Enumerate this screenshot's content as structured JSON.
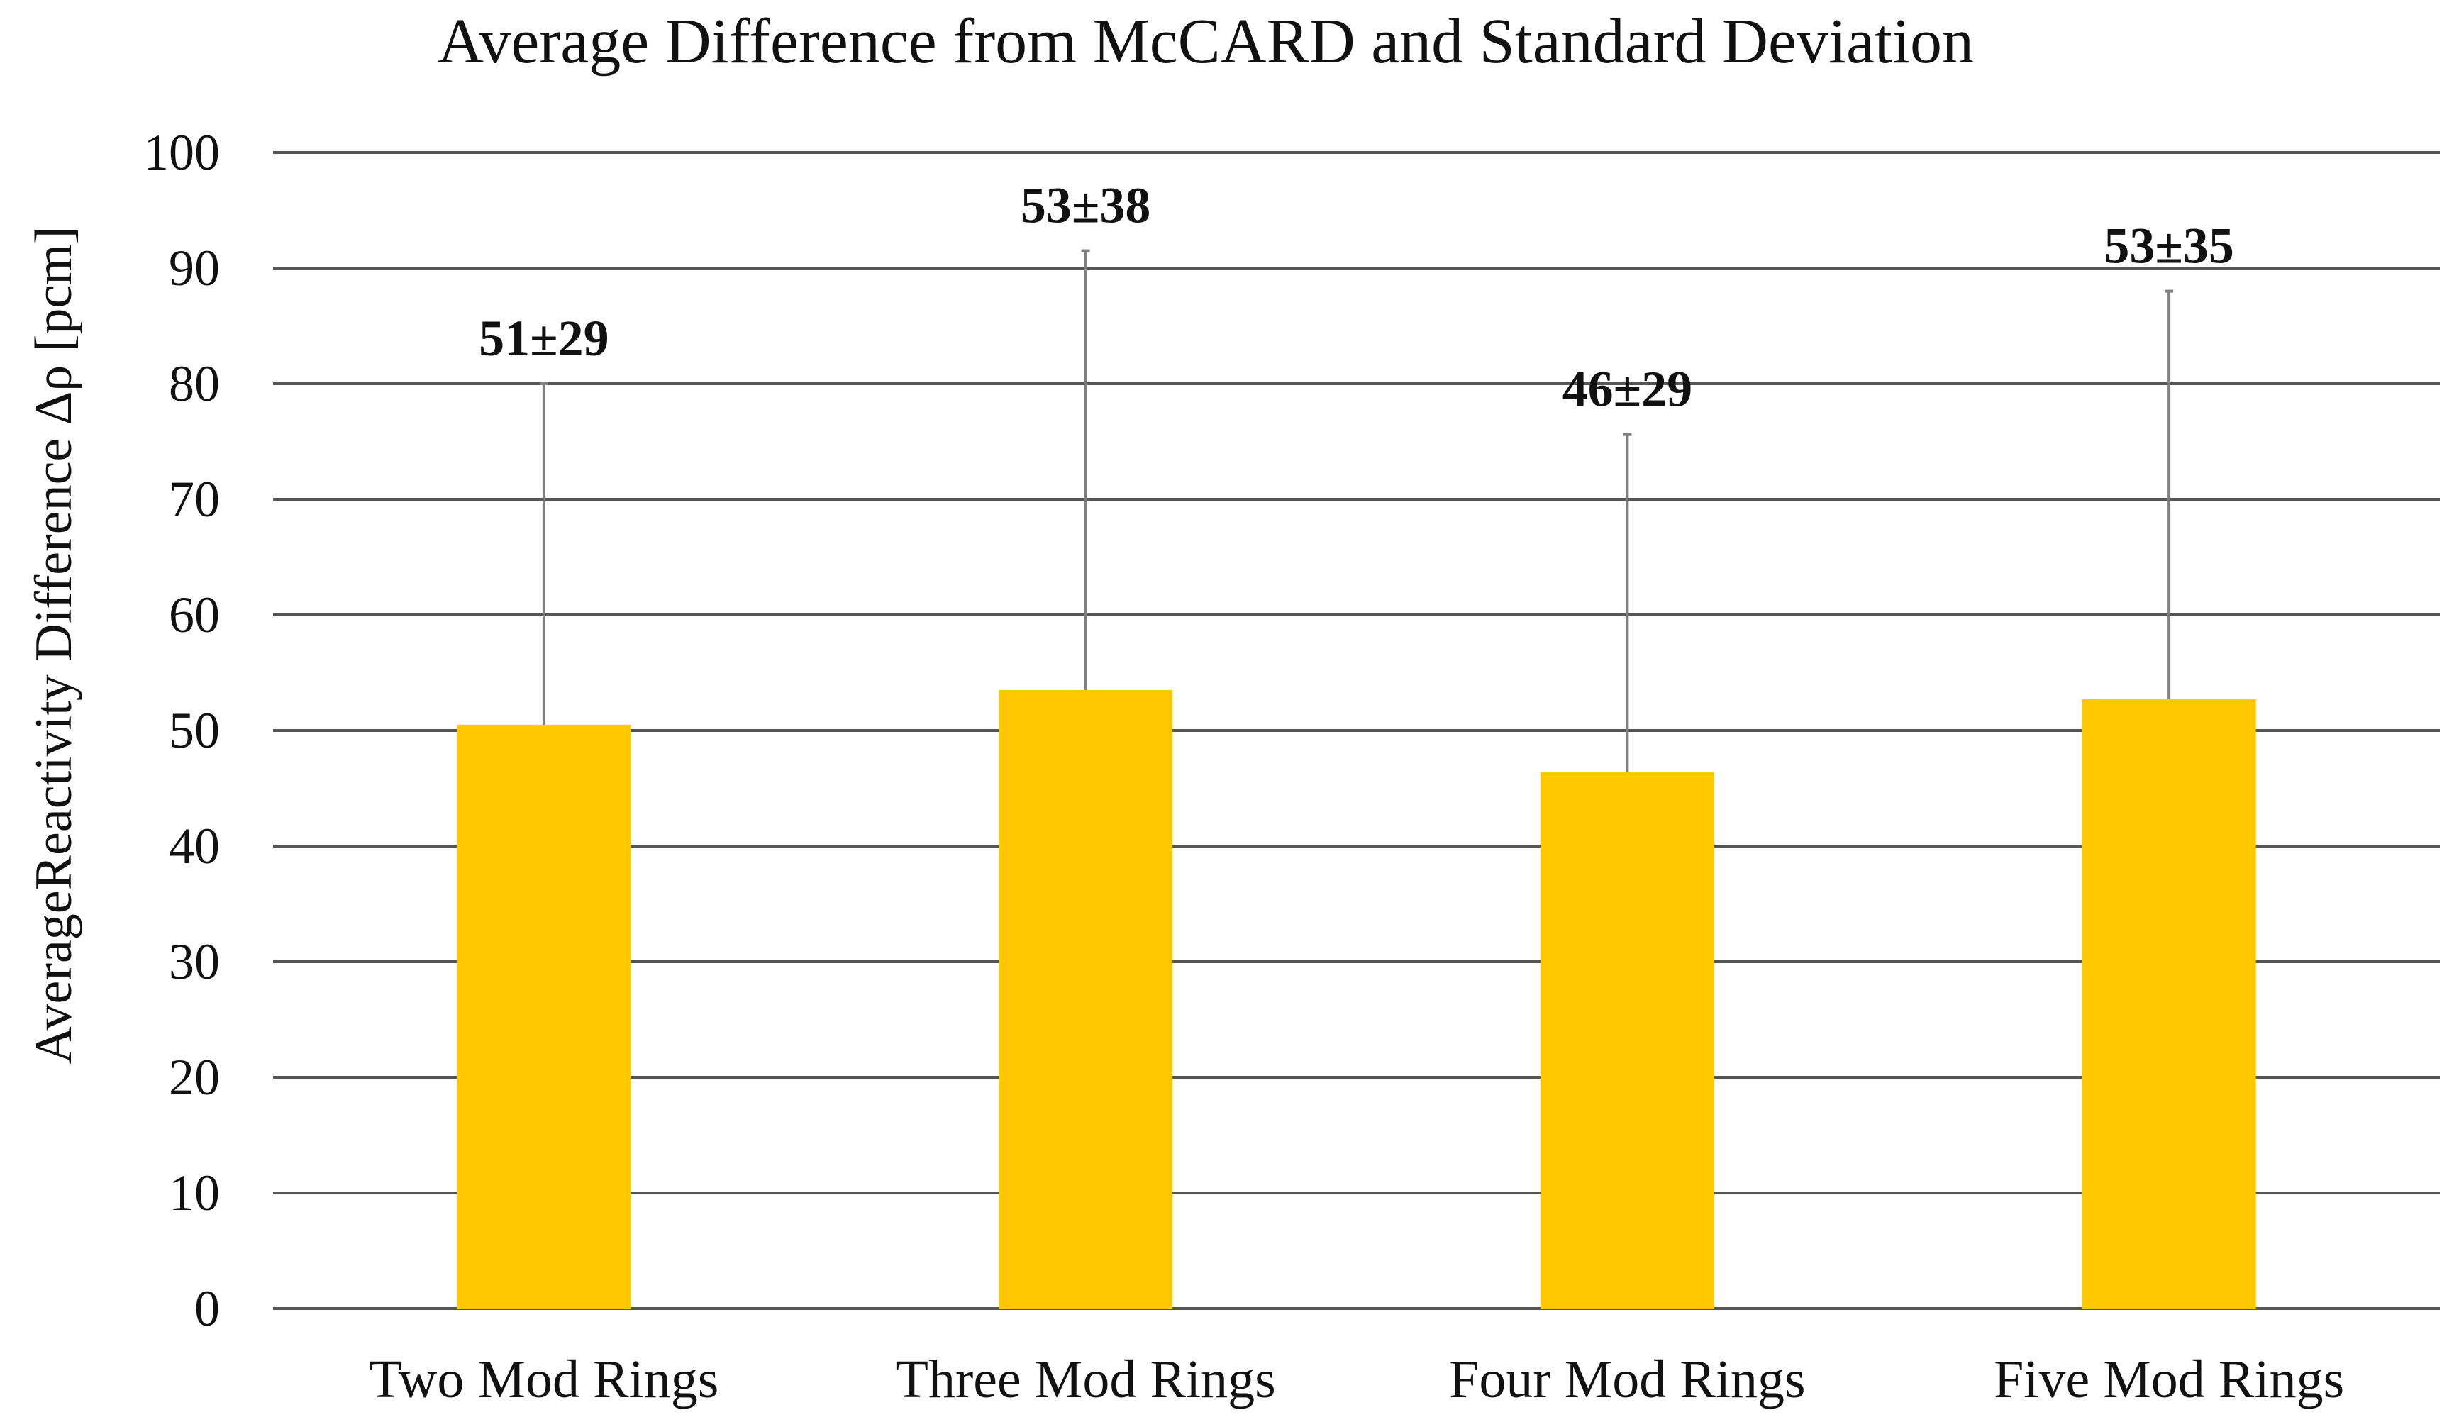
{
  "chart_data": {
    "type": "bar",
    "title": "Average Difference from McCARD and Standard Deviation",
    "xlabel": "",
    "ylabel": "AverageReactivity Difference Δρ [pcm]",
    "ylim": [
      0,
      100
    ],
    "yticks": [
      0,
      10,
      20,
      30,
      40,
      50,
      60,
      70,
      80,
      90,
      100
    ],
    "grid": true,
    "categories": [
      "Two Mod Rings",
      "Three Mod Rings",
      "Four Mod Rings",
      "Five Mod Rings"
    ],
    "values": [
      50.5,
      53.5,
      46.4,
      52.7
    ],
    "error_plus": [
      29.5,
      38,
      29.2,
      35.3
    ],
    "data_labels": [
      "51±29",
      "53±38",
      "46±29",
      "53±35"
    ],
    "colors": {
      "bar": "#FFC800",
      "grid": "#555555",
      "error_bar": "#7f7f7f",
      "text": "#111111"
    }
  }
}
